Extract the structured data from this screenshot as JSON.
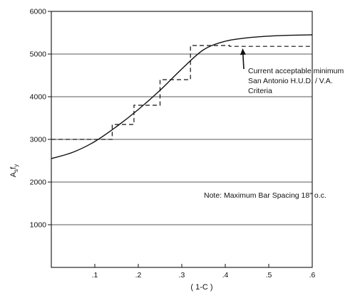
{
  "chart_data": {
    "type": "line",
    "title": "",
    "xlabel": "( 1-C )",
    "ylabel": "A_s f_y",
    "ylabel_main": "A",
    "ylabel_sub_s": "s",
    "ylabel_f": "f",
    "ylabel_sub_y": "y",
    "xlim": [
      0,
      0.6
    ],
    "ylim": [
      0,
      6000
    ],
    "x_ticks": [
      {
        "value": 0.1,
        "label": ".1"
      },
      {
        "value": 0.2,
        "label": ".2"
      },
      {
        "value": 0.3,
        "label": ".3"
      },
      {
        "value": 0.4,
        "label": ".4"
      },
      {
        "value": 0.5,
        "label": ".5"
      },
      {
        "value": 0.6,
        "label": ".6"
      }
    ],
    "y_ticks": [
      {
        "value": 1000,
        "label": "1000"
      },
      {
        "value": 2000,
        "label": "2000"
      },
      {
        "value": 3000,
        "label": "3000"
      },
      {
        "value": 4000,
        "label": "4000"
      },
      {
        "value": 5000,
        "label": "5000"
      },
      {
        "value": 6000,
        "label": "6000"
      }
    ],
    "grid": "horizontal",
    "series": [
      {
        "style": "solid",
        "x": [
          0.0,
          0.05,
          0.1,
          0.15,
          0.2,
          0.25,
          0.3,
          0.35,
          0.4,
          0.45,
          0.5,
          0.55,
          0.6
        ],
        "y": [
          2550,
          2700,
          2950,
          3300,
          3700,
          4150,
          4650,
          5100,
          5300,
          5380,
          5420,
          5440,
          5450
        ]
      },
      {
        "style": "dashed",
        "type": "step",
        "x": [
          0.0,
          0.14,
          0.14,
          0.19,
          0.19,
          0.25,
          0.25,
          0.32,
          0.32,
          0.41,
          0.41,
          0.6
        ],
        "y": [
          3000,
          3000,
          3350,
          3350,
          3800,
          3800,
          4400,
          4400,
          5200,
          5200,
          5180,
          5180
        ]
      }
    ],
    "annotations": {
      "criteria": {
        "line1": "Current acceptable minimum",
        "line2": "San Antonio H.U.D. / V.A.",
        "line3": "Criteria",
        "arrow_to": {
          "x": 0.44,
          "y": 5200
        }
      },
      "note": "Note:  Maximum Bar Spacing 18\" o.c."
    }
  }
}
